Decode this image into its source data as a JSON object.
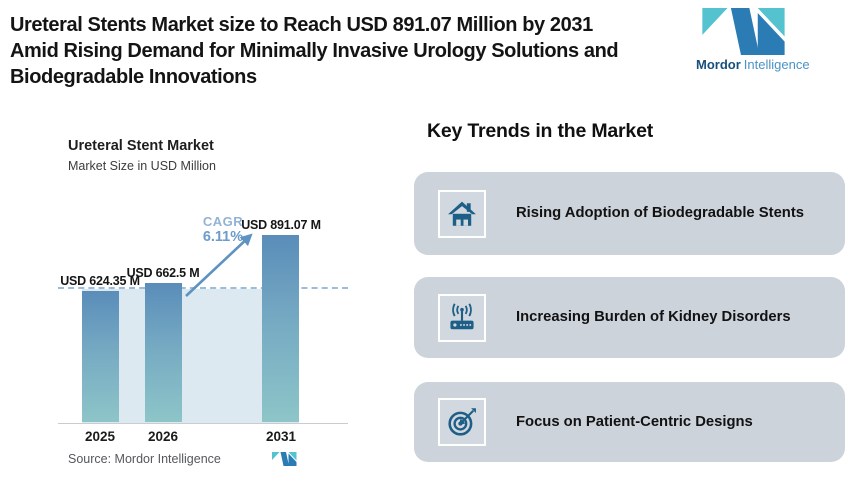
{
  "header": {
    "title_lines": [
      "Ureteral Stents Market size to Reach USD 891.07 Million by 2031",
      "Amid Rising Demand for Minimally Invasive Urology Solutions and",
      "Biodegradable Innovations"
    ],
    "brand": {
      "bold": "Mordor",
      "light": "Intelligence"
    }
  },
  "chart": {
    "title": "Ureteral Stent Market",
    "subtitle": "Market Size in USD Million",
    "cagr_label": "CAGR",
    "cagr_value": "6.11%",
    "source": "Source: Mordor Intelligence",
    "bars": [
      {
        "year": "2025",
        "label": "USD 624.35 M"
      },
      {
        "year": "2026",
        "label": "USD 662.5 M"
      },
      {
        "year": "2031",
        "label": "USD 891.07 M"
      }
    ]
  },
  "chart_data": {
    "type": "bar",
    "categories": [
      "2025",
      "2026",
      "2031"
    ],
    "values": [
      624.35,
      662.5,
      891.07
    ],
    "title": "Ureteral Stent Market",
    "subtitle": "Market Size in USD Million",
    "ylabel": "Market Size in USD Million",
    "xlabel": "",
    "unit": "USD Million",
    "data_labels": [
      "USD 624.35 M",
      "USD 662.5 M",
      "USD 891.07 M"
    ],
    "annotations": [
      "CAGR 6.11%"
    ],
    "grid": false,
    "legend": false,
    "baseline": 0,
    "source": "Source: Mordor Intelligence"
  },
  "trends": {
    "heading": "Key Trends in the Market",
    "items": [
      {
        "icon": "home-icon",
        "label": "Rising Adoption of Biodegradable Stents"
      },
      {
        "icon": "router-icon",
        "label": "Increasing Burden of Kidney Disorders"
      },
      {
        "icon": "target-icon",
        "label": "Focus on Patient-Centric Designs"
      }
    ]
  },
  "colors": {
    "bar_top": "#5a8db9",
    "bar_bottom": "#8dc5c8",
    "plot_band": "#dde9f1",
    "dashed_line": "#9cbcda",
    "arrow": "#5d92c3",
    "card_bg": "#cdd3db",
    "icon_blue": "#1d5f86",
    "brand_blue": "#2b7cb5",
    "brand_teal": "#54c2cf",
    "headline_text": "#141414"
  }
}
